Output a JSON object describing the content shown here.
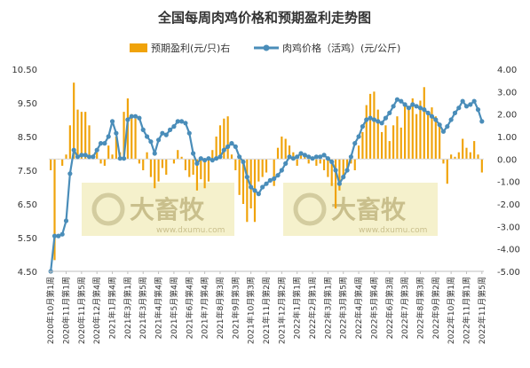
{
  "watermark": {
    "brand": "大畜牧",
    "url": "www.dxumu.com"
  },
  "chart_data": {
    "type": "bar+line",
    "title": "全国每周肉鸡价格和预期盈利走势图",
    "legend": {
      "bar_label": "预期盈利(元/只)右",
      "line_label": "肉鸡价格（活鸡）(元/公斤)",
      "position": "top"
    },
    "colors": {
      "bar": "#f0a30a",
      "line": "#4a8db9",
      "marker": "#4a8db9",
      "watermark": "#f2eec0"
    },
    "left_axis": {
      "ticks": [
        "4.50",
        "5.50",
        "6.50",
        "7.50",
        "8.50",
        "9.50",
        "10.50"
      ],
      "min": 4.5,
      "max": 10.5
    },
    "right_axis": {
      "ticks": [
        "-5.00",
        "-4.00",
        "-3.00",
        "-2.00",
        "-1.00",
        "0.00",
        "1.00",
        "2.00",
        "3.00",
        "4.00"
      ],
      "min": -5,
      "max": 4
    },
    "x_tick_labels": [
      "2020年10月第1周",
      "2020年11月第1周",
      "2020年11月第5周",
      "2020年12月第4周",
      "2021年1月第4周",
      "2021年3月第1周",
      "2021年3月第5周",
      "2021年4月第4周",
      "2021年5月第4周",
      "2021年6月第4周",
      "2021年7月第4周",
      "2021年8月第3周",
      "2021年9月第3周",
      "2021年10月第3周",
      "2021年11月第2周",
      "2021年12月第2周",
      "2022年1月第1周",
      "2022年2月第1周",
      "2022年3月第1周",
      "2022年3月第5周",
      "2022年4月第4周",
      "2022年5月第4周",
      "2022年6月第3周",
      "2022年7月第3周",
      "2022年8月第3周",
      "2022年9月第2周",
      "2022年10月第1周",
      "2022年11月第1周",
      "2022年11月第5周"
    ],
    "grid": false,
    "price": [
      4.5,
      5.55,
      5.55,
      5.6,
      6.0,
      7.4,
      8.1,
      7.9,
      7.95,
      7.95,
      7.9,
      7.9,
      8.1,
      8.3,
      8.3,
      8.5,
      8.95,
      8.6,
      7.85,
      7.85,
      9.0,
      9.1,
      9.1,
      9.05,
      8.7,
      8.5,
      8.35,
      8.0,
      8.4,
      8.6,
      8.55,
      8.7,
      8.8,
      8.95,
      8.95,
      8.9,
      8.6,
      8.0,
      7.7,
      7.85,
      7.8,
      7.85,
      7.8,
      7.85,
      7.9,
      8.1,
      8.2,
      8.3,
      8.2,
      7.9,
      7.75,
      7.3,
      7.0,
      6.9,
      6.8,
      7.0,
      7.1,
      7.2,
      7.25,
      7.35,
      7.5,
      7.7,
      7.9,
      7.85,
      7.9,
      8.0,
      7.95,
      7.9,
      7.85,
      7.9,
      7.9,
      7.95,
      7.85,
      7.75,
      7.5,
      7.1,
      7.3,
      7.5,
      7.9,
      8.3,
      8.5,
      8.8,
      9.0,
      9.05,
      9.0,
      8.95,
      8.9,
      9.05,
      9.2,
      9.4,
      9.6,
      9.55,
      9.45,
      9.35,
      9.45,
      9.4,
      9.35,
      9.3,
      9.2,
      9.1,
      9.0,
      8.85,
      8.65,
      8.8,
      9.0,
      9.2,
      9.35,
      9.55,
      9.4,
      9.45,
      9.55,
      9.3,
      8.95
    ],
    "profit": [
      -0.5,
      -4.5,
      0,
      -0.3,
      0.2,
      1.5,
      3.4,
      2.2,
      2.1,
      2.1,
      1.5,
      0.2,
      0.3,
      -0.2,
      -0.3,
      0.6,
      0.2,
      1.0,
      0.3,
      2.1,
      2.7,
      2.0,
      1.8,
      -0.2,
      -0.5,
      0.3,
      -0.8,
      -1.3,
      -1.0,
      -0.4,
      -0.7,
      0,
      -0.2,
      0.4,
      0.1,
      -0.5,
      -0.8,
      -0.7,
      -1.4,
      -0.9,
      -1.3,
      -1.0,
      0.4,
      1.0,
      1.5,
      1.8,
      1.9,
      0.2,
      -0.5,
      -1.6,
      -2.0,
      -2.8,
      -2.2,
      -2.8,
      -1.0,
      -0.8,
      -0.6,
      0,
      -1.2,
      0.5,
      1.0,
      0.9,
      0.6,
      0.3,
      -0.3,
      0.2,
      0.1,
      -0.2,
      0.1,
      -0.3,
      -0.2,
      -0.5,
      -0.8,
      -1.2,
      -2.2,
      -1.4,
      -0.9,
      -0.5,
      -0.2,
      -0.5,
      0.6,
      1.2,
      2.4,
      2.9,
      3.0,
      2.2,
      1.2,
      1.5,
      0.8,
      1.5,
      1.9,
      1.4,
      2.4,
      2.3,
      2.7,
      2.0,
      2.6,
      3.2,
      2.1,
      2.3,
      1.9,
      1.5,
      -0.2,
      -1.1,
      0.2,
      0.1,
      0.3,
      0.9,
      0.5,
      0.3,
      0.8,
      0.2,
      -0.6
    ]
  }
}
